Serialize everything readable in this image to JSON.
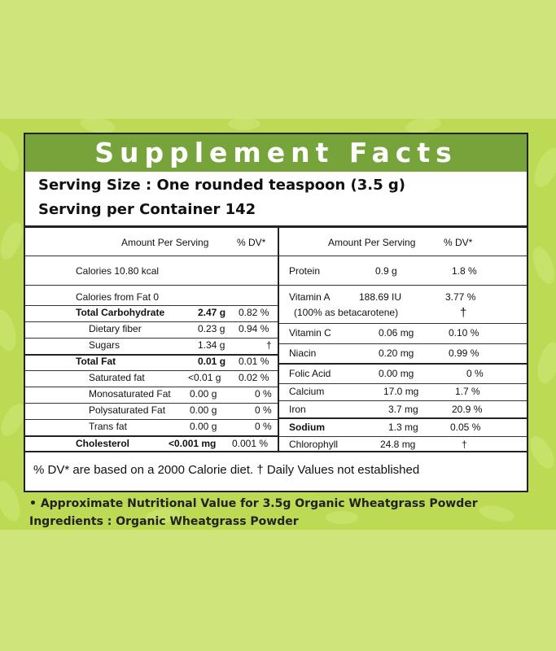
{
  "header": {
    "title": "Supplement Facts"
  },
  "serving": {
    "size": "Serving Size : One rounded teaspoon (3.5 g)",
    "per_container": "Serving per Container 142"
  },
  "left_table": {
    "amount_header": "Amount Per Serving",
    "dv_header": "% DV*",
    "rows": [
      {
        "label": "Calories 10.80 kcal",
        "amount": "",
        "dv": ""
      },
      {
        "label": "Calories from Fat 0",
        "amount": "",
        "dv": ""
      },
      {
        "label": "Total Carbohydrate",
        "amount": "2.47 g",
        "dv": "0.82 %"
      },
      {
        "label": "Dietary fiber",
        "amount": "0.23 g",
        "dv": "0.94 %"
      },
      {
        "label": "Sugars",
        "amount": "1.34 g",
        "dv": "†"
      },
      {
        "label": "Total Fat",
        "amount": "0.01 g",
        "dv": "0.01 %"
      },
      {
        "label": "Saturated fat",
        "amount": "<0.01 g",
        "dv": "0.02 %"
      },
      {
        "label": "Monosaturated Fat",
        "amount": "0.00 g",
        "dv": "0 %"
      },
      {
        "label": "Polysaturated Fat",
        "amount": "0.00 g",
        "dv": "0 %"
      },
      {
        "label": "Trans fat",
        "amount": "0.00 g",
        "dv": "0 %"
      },
      {
        "label": "Cholesterol",
        "amount": "<0.001 mg",
        "dv": "0.001 %"
      }
    ]
  },
  "right_table": {
    "amount_header": "Amount Per Serving",
    "dv_header": "% DV*",
    "rows": [
      {
        "label": "Protein",
        "amount": "0.9 g",
        "dv": "1.8 %"
      },
      {
        "label": "Vitamin A",
        "amount": "188.69 IU",
        "dv": "3.77 %"
      },
      {
        "label": "(100% as betacarotene)",
        "amount": "",
        "dv": "†"
      },
      {
        "label": "Vitamin C",
        "amount": "0.06 mg",
        "dv": "0.10 %"
      },
      {
        "label": "Niacin",
        "amount": "0.20 mg",
        "dv": "0.99 %"
      },
      {
        "label": "Folic Acid",
        "amount": "0.00 mg",
        "dv": "0 %"
      },
      {
        "label": "Calcium",
        "amount": "17.0 mg",
        "dv": "1.7 %"
      },
      {
        "label": "Iron",
        "amount": "3.7 mg",
        "dv": "20.9 %"
      },
      {
        "label": "Sodium",
        "amount": "1.3 mg",
        "dv": "0.05 %"
      },
      {
        "label": "Chlorophyll",
        "amount": "24.8 mg",
        "dv": "†"
      }
    ]
  },
  "footnote": "% DV* are based on a 2000 Calorie diet.   † Daily Values not established",
  "notes": {
    "approx": "• Approximate Nutritional Value for 3.5g Organic Wheatgrass Powder",
    "ingredients": "Ingredients : Organic Wheatgrass Powder"
  },
  "colors": {
    "header_green": "#76a43a",
    "background_light": "#cfe57a",
    "band_green": "#bcda54"
  }
}
